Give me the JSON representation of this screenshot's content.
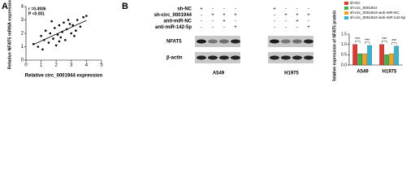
{
  "panel_labels": [
    "A",
    "B"
  ],
  "chart_data": [
    {
      "type": "scatter",
      "annotations": [
        "r =0.4936",
        "P <0.001"
      ],
      "x_label": "Relative circ_0001944 expression",
      "y_label": "Relative NFAT5 mRNA expression",
      "x": [
        0.5,
        0.8,
        1.0,
        1.2,
        1.3,
        1.5,
        1.6,
        1.8,
        1.9,
        2.0,
        2.1,
        2.2,
        2.3,
        2.4,
        2.5,
        2.6,
        2.7,
        2.8,
        3.0,
        3.1,
        3.2,
        3.4,
        3.6,
        3.8,
        4.0,
        1.1,
        1.7,
        2.2,
        2.9,
        3.3
      ],
      "values": [
        1.2,
        1.0,
        1.8,
        1.5,
        2.2,
        1.3,
        2.0,
        1.6,
        2.4,
        1.1,
        1.9,
        2.6,
        1.7,
        2.1,
        2.8,
        1.5,
        2.3,
        3.0,
        2.0,
        2.6,
        1.8,
        3.0,
        2.5,
        3.2,
        3.3,
        0.8,
        2.9,
        1.4,
        2.7,
        2.2
      ],
      "color": "#000000",
      "xlim": [
        0,
        5
      ],
      "xticks": [
        0,
        1,
        2,
        3,
        4,
        5
      ],
      "ylim": [
        0,
        4
      ],
      "yticks": [
        0,
        1,
        2,
        3,
        4
      ]
    },
    {
      "type": "bar",
      "y_label": "Relative expression of NFAT5 protein",
      "categories": [
        "A549",
        "H1975"
      ],
      "series": [
        {
          "name": "sh-NC",
          "color": "#e8352b",
          "values": [
            1.0,
            1.0
          ]
        },
        {
          "name": "sh-circ_0001944",
          "color": "#3bb54a",
          "values": [
            0.55,
            0.5
          ]
        },
        {
          "name": "sh-circ_0001944+anti-miR-NC",
          "color": "#f7a21b",
          "values": [
            0.55,
            0.55
          ]
        },
        {
          "name": "sh-circ_0001944+anti-miR-142-5p",
          "color": "#2fb6d6",
          "values": [
            0.95,
            0.92
          ]
        }
      ],
      "ylim": [
        0,
        1.5
      ],
      "yticks": [
        {
          "value": 0,
          "label": "0.0"
        },
        {
          "value": 0.5,
          "label": "0.5"
        },
        {
          "value": 1,
          "label": "1.0"
        },
        {
          "value": 1.5,
          "label": "1.5"
        }
      ],
      "significance": [
        "***",
        "***",
        "***",
        "***"
      ]
    }
  ],
  "blot": {
    "rows": [
      {
        "label": "sh-NC",
        "signs": [
          "+",
          "-",
          "-",
          "-",
          "+",
          "-",
          "-",
          "-"
        ]
      },
      {
        "label": "sh-circ_0001944",
        "signs": [
          "-",
          "+",
          "+",
          "+",
          "-",
          "+",
          "+",
          "+"
        ]
      },
      {
        "label": "anti-miR-NC",
        "signs": [
          "-",
          "-",
          "+",
          "-",
          "-",
          "-",
          "+",
          "-"
        ]
      },
      {
        "label": "anti-miR-142-5p",
        "signs": [
          "-",
          "-",
          "-",
          "+",
          "-",
          "-",
          "-",
          "+"
        ]
      }
    ],
    "bands": [
      "NFAT5",
      "β-actin"
    ],
    "cell_lines": [
      "A549",
      "H1975"
    ]
  }
}
